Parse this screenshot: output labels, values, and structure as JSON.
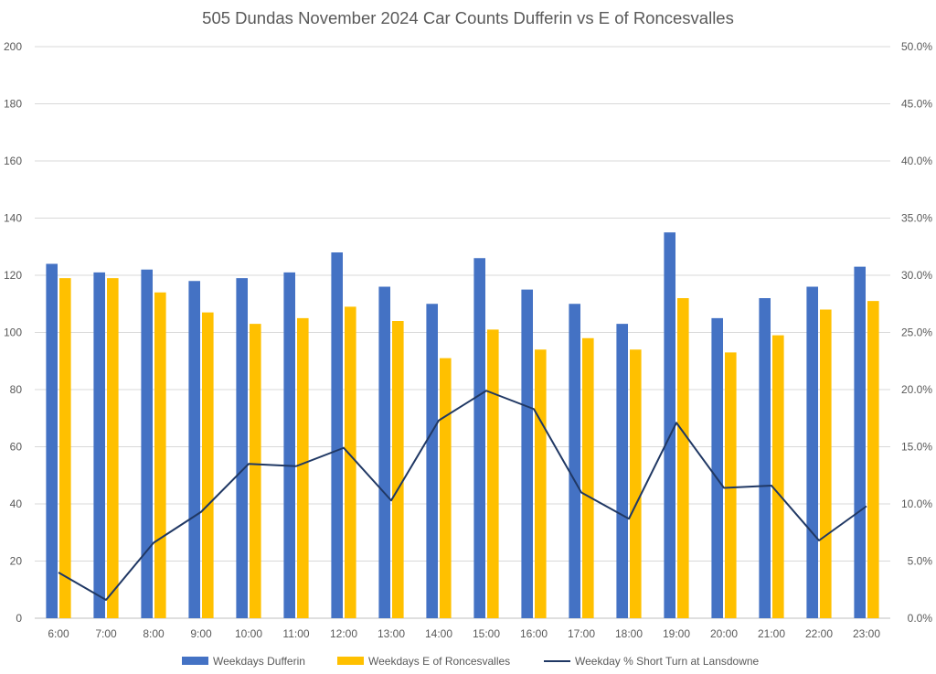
{
  "chart_data": {
    "type": "bar",
    "title": "505 Dundas November 2024 Car Counts Dufferin vs E of Roncesvalles",
    "categories": [
      "6:00",
      "7:00",
      "8:00",
      "9:00",
      "10:00",
      "11:00",
      "12:00",
      "13:00",
      "14:00",
      "15:00",
      "16:00",
      "17:00",
      "18:00",
      "19:00",
      "20:00",
      "21:00",
      "22:00",
      "23:00"
    ],
    "series": [
      {
        "name": "Weekdays Dufferin",
        "type": "bar",
        "axis": "left",
        "color": "#4472C4",
        "values": [
          124,
          121,
          122,
          118,
          119,
          121,
          128,
          116,
          110,
          126,
          115,
          110,
          103,
          135,
          105,
          112,
          116,
          123
        ]
      },
      {
        "name": "Weekdays E of Roncesvalles",
        "type": "bar",
        "axis": "left",
        "color": "#FFC000",
        "values": [
          119,
          119,
          114,
          107,
          103,
          105,
          109,
          104,
          91,
          101,
          94,
          98,
          94,
          112,
          93,
          99,
          108,
          111
        ]
      },
      {
        "name": "Weekday % Short Turn at Lansdowne",
        "type": "line",
        "axis": "right",
        "color": "#203864",
        "values": [
          0.04,
          0.016,
          0.066,
          0.093,
          0.135,
          0.133,
          0.149,
          0.103,
          0.173,
          0.199,
          0.183,
          0.11,
          0.087,
          0.171,
          0.114,
          0.116,
          0.068,
          0.098
        ]
      }
    ],
    "ylim": [
      0,
      200
    ],
    "yticks": [
      "0",
      "20",
      "40",
      "60",
      "80",
      "100",
      "120",
      "140",
      "160",
      "180",
      "200"
    ],
    "y2lim": [
      0,
      0.5
    ],
    "y2ticks": [
      "0.0%",
      "5.0%",
      "10.0%",
      "15.0%",
      "20.0%",
      "25.0%",
      "30.0%",
      "35.0%",
      "40.0%",
      "45.0%",
      "50.0%"
    ],
    "grid": true,
    "legend_position": "bottom"
  }
}
